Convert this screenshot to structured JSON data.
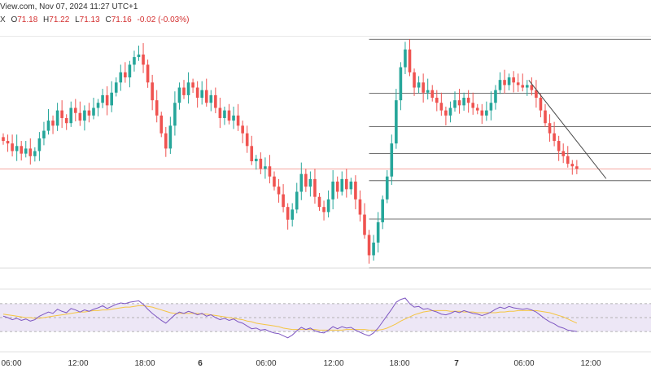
{
  "header": {
    "source_date_fragment": "View.com, Nov 07, 2024 11:27 UTC+1",
    "symbol_tail": "X",
    "open_label": "O",
    "open": "71.18",
    "high_label": "H",
    "high": "71.22",
    "low_label": "L",
    "low": "71.13",
    "close_label": "C",
    "close": "71.16",
    "change": "-0.02 (-0.03%)"
  },
  "colors": {
    "up": "#26a69a",
    "down": "#ef5350",
    "rsi_line": "#7e57c2",
    "rsi_ma": "#f5c542",
    "rsi_band_fill": "#ede7f6",
    "price_line": "#f28b82"
  },
  "chart_data": [
    {
      "type": "candlestick",
      "title": "",
      "x_ticks": [
        "06:00",
        "12:00",
        "18:00",
        "6",
        "06:00",
        "12:00",
        "18:00",
        "7",
        "06:00",
        "12:00"
      ],
      "closes": [
        66.6,
        66.5,
        66.2,
        66.4,
        66.1,
        66.3,
        66.0,
        66.2,
        66.7,
        67.0,
        67.4,
        67.2,
        67.8,
        67.5,
        67.3,
        67.9,
        67.7,
        67.4,
        67.8,
        67.6,
        67.9,
        68.1,
        68.4,
        68.0,
        68.5,
        68.9,
        69.3,
        69.1,
        69.6,
        69.9,
        70.0,
        69.6,
        68.9,
        68.2,
        67.6,
        66.9,
        66.3,
        67.2,
        68.1,
        68.7,
        68.4,
        68.9,
        68.7,
        68.3,
        68.6,
        68.1,
        68.4,
        67.9,
        67.5,
        67.8,
        67.4,
        67.6,
        67.2,
        66.9,
        66.4,
        65.8,
        65.9,
        65.5,
        65.6,
        65.2,
        64.8,
        64.5,
        64.0,
        63.5,
        63.9,
        64.6,
        65.3,
        64.8,
        65.1,
        64.4,
        64.0,
        63.8,
        64.3,
        65.0,
        64.6,
        65.1,
        64.7,
        65.0,
        64.3,
        63.7,
        62.9,
        62.1,
        62.6,
        63.4,
        64.3,
        65.2,
        66.5,
        68.2,
        69.5,
        70.2,
        69.3,
        68.7,
        68.9,
        68.5,
        68.6,
        68.3,
        68.1,
        67.8,
        67.6,
        67.9,
        68.2,
        68.0,
        68.3,
        68.1,
        67.9,
        67.8,
        67.6,
        67.8,
        68.1,
        68.6,
        69.0,
        68.8,
        69.1,
        68.9,
        68.8,
        68.7,
        68.8,
        68.6,
        68.3,
        67.8,
        67.3,
        66.9,
        66.6,
        66.2,
        66.0,
        65.7,
        65.6,
        65.5
      ],
      "overlay_labels": []
    },
    {
      "type": "line",
      "title": "",
      "series": [
        {
          "values": [
            52,
            50,
            47,
            49,
            46,
            48,
            45,
            47,
            52,
            55,
            58,
            56,
            62,
            59,
            57,
            63,
            61,
            58,
            61,
            59,
            62,
            64,
            67,
            63,
            66,
            69,
            71,
            70,
            72,
            73,
            74,
            69,
            62,
            56,
            51,
            46,
            42,
            48,
            54,
            58,
            56,
            59,
            57,
            54,
            56,
            52,
            54,
            50,
            47,
            49,
            46,
            48,
            44,
            42,
            38,
            34,
            35,
            32,
            33,
            30,
            28,
            27,
            24,
            21,
            25,
            31,
            36,
            33,
            35,
            31,
            29,
            28,
            32,
            37,
            34,
            37,
            35,
            36,
            32,
            29,
            26,
            24,
            28,
            35,
            44,
            53,
            62,
            72,
            76,
            78,
            70,
            65,
            66,
            62,
            63,
            60,
            58,
            55,
            54,
            56,
            59,
            57,
            60,
            58,
            56,
            55,
            53,
            55,
            58,
            62,
            65,
            63,
            66,
            64,
            63,
            62,
            63,
            61,
            58,
            53,
            48,
            44,
            41,
            37,
            35,
            32,
            31,
            30
          ]
        },
        {
          "values": [
            55,
            54,
            53,
            52,
            51,
            50,
            50,
            49,
            49,
            50,
            51,
            52,
            53,
            54,
            55,
            56,
            57,
            58,
            58,
            59,
            60,
            60,
            61,
            61,
            62,
            63,
            64,
            65,
            65,
            66,
            67,
            67,
            66,
            65,
            63,
            61,
            59,
            57,
            56,
            56,
            56,
            56,
            56,
            56,
            55,
            55,
            54,
            53,
            52,
            51,
            50,
            49,
            48,
            47,
            45,
            44,
            42,
            41,
            40,
            39,
            38,
            37,
            35,
            34,
            33,
            33,
            33,
            33,
            33,
            33,
            32,
            32,
            32,
            32,
            32,
            32,
            33,
            33,
            33,
            33,
            33,
            32,
            32,
            32,
            33,
            35,
            38,
            41,
            45,
            48,
            51,
            54,
            56,
            58,
            59,
            60,
            60,
            60,
            60,
            59,
            59,
            59,
            58,
            58,
            58,
            57,
            57,
            57,
            57,
            57,
            58,
            58,
            59,
            59,
            60,
            60,
            60,
            60,
            60,
            59,
            58,
            57,
            55,
            53,
            51,
            48,
            45,
            42
          ]
        }
      ],
      "ylim": [
        15,
        85
      ],
      "levels": [
        70,
        50,
        30
      ]
    }
  ]
}
